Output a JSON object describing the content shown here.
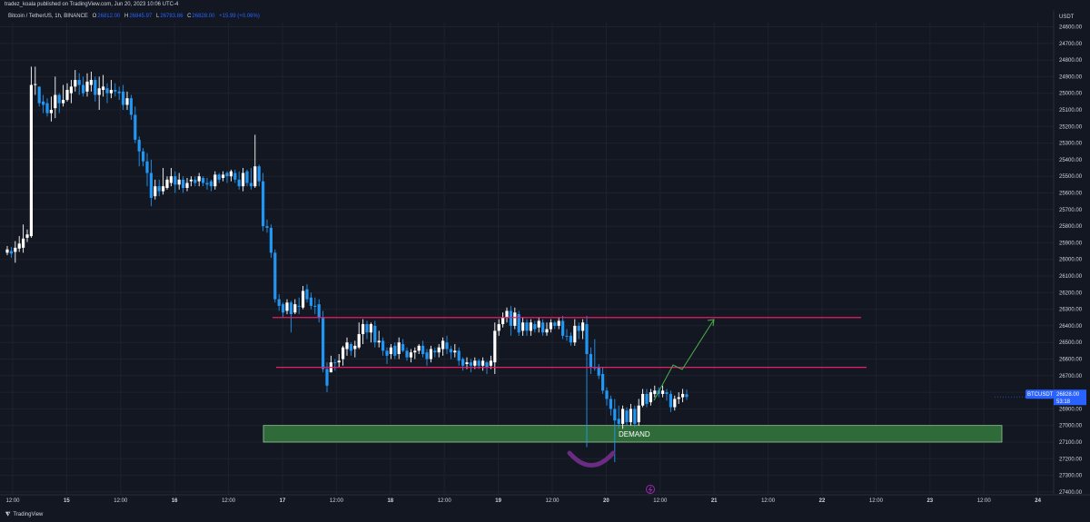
{
  "header": {
    "publisher": "tradez_koala published on TradingView.com, Jun 20, 2023 10:06 UTC-4",
    "symbol": "Bitcoin / TetherUS, 1h, BINANCE",
    "open_key": "O",
    "open": "26812.00",
    "high_key": "H",
    "high": "26845.97",
    "low_key": "L",
    "low": "26783.86",
    "close_key": "C",
    "close": "26828.00",
    "change": "+15.99 (+0.06%)"
  },
  "footer": {
    "logo": "⧨",
    "brand": "TradingView"
  },
  "colors": {
    "background": "#131722",
    "grid": "#1e222d",
    "up_candle": "#ffffff",
    "down_candle": "#2196f3",
    "resistance_line": "#e91e63",
    "demand_zone": "#2e6b38",
    "demand_border": "#a5d6a7",
    "projection": "#4caf50",
    "smile": "#6a2c82",
    "price_label": "#2962ff"
  },
  "chart_data": {
    "type": "candlestick",
    "currency": "USDT",
    "ylim": [
      27400,
      24500
    ],
    "y_ticks": [
      "24600.00",
      "24700.00",
      "24800.00",
      "24900.00",
      "25000.00",
      "25100.00",
      "25200.00",
      "25300.00",
      "25400.00",
      "25500.00",
      "25600.00",
      "25700.00",
      "25800.00",
      "25900.00",
      "26000.00",
      "26100.00",
      "26200.00",
      "26300.00",
      "26400.00",
      "26500.00",
      "26600.00",
      "26700.00",
      "26800.00",
      "26900.00",
      "27000.00",
      "27100.00",
      "27200.00",
      "27300.00",
      "27400.00"
    ],
    "x_ticks": [
      "12:00",
      "15",
      "12:00",
      "16",
      "12:00",
      "17",
      "12:00",
      "18",
      "12:00",
      "19",
      "12:00",
      "20",
      "12:00",
      "21",
      "12:00",
      "22",
      "12:00",
      "23",
      "12:00",
      "24"
    ],
    "last_price": {
      "symbol": "BTCUSDT",
      "price": "26828.00",
      "countdown": "53:18"
    },
    "zones": [
      {
        "label": "DEMAND",
        "from": 27000,
        "to": 27100
      }
    ],
    "levels": [
      26350,
      26650
    ],
    "candles": [
      [
        25960,
        25940,
        25920,
        25975
      ],
      [
        25950,
        25965,
        25925,
        25990
      ],
      [
        25955,
        25930,
        25890,
        26020
      ],
      [
        25935,
        25905,
        25860,
        25955
      ],
      [
        25930,
        25875,
        25790,
        25960
      ],
      [
        25870,
        25850,
        25820,
        25895
      ],
      [
        25860,
        24950,
        24840,
        25870
      ],
      [
        24950,
        24945,
        24840,
        25010
      ],
      [
        24960,
        25060,
        24960,
        25080
      ],
      [
        25050,
        25070,
        25010,
        25120
      ],
      [
        25060,
        25120,
        25030,
        25140
      ],
      [
        25120,
        25100,
        25020,
        25170
      ],
      [
        25090,
        25010,
        24900,
        25150
      ],
      [
        25010,
        25060,
        25000,
        25120
      ],
      [
        25060,
        25040,
        24950,
        25080
      ],
      [
        25040,
        24980,
        24940,
        25050
      ],
      [
        25000,
        24960,
        24920,
        25060
      ],
      [
        24960,
        24920,
        24860,
        24990
      ],
      [
        24920,
        24950,
        24880,
        25010
      ],
      [
        24950,
        25000,
        24900,
        25020
      ],
      [
        24990,
        24930,
        24880,
        25020
      ],
      [
        24950,
        24920,
        24870,
        24990
      ],
      [
        24920,
        25010,
        24900,
        25050
      ],
      [
        25010,
        24970,
        24900,
        25100
      ],
      [
        24980,
        24960,
        24890,
        25020
      ],
      [
        24970,
        25000,
        24940,
        25060
      ],
      [
        25000,
        24980,
        24920,
        25030
      ],
      [
        24980,
        24990,
        24940,
        25020
      ],
      [
        24990,
        25000,
        24960,
        25040
      ],
      [
        24990,
        25070,
        24950,
        25100
      ],
      [
        25070,
        25030,
        24990,
        25100
      ],
      [
        25030,
        25130,
        25010,
        25160
      ],
      [
        25130,
        25280,
        25080,
        25300
      ],
      [
        25280,
        25350,
        25260,
        25440
      ],
      [
        25350,
        25410,
        25330,
        25440
      ],
      [
        25410,
        25480,
        25360,
        25560
      ],
      [
        25480,
        25630,
        25400,
        25680
      ],
      [
        25620,
        25560,
        25520,
        25640
      ],
      [
        25560,
        25590,
        25520,
        25620
      ],
      [
        25590,
        25560,
        25450,
        25610
      ],
      [
        25570,
        25520,
        25500,
        25580
      ],
      [
        25540,
        25500,
        25450,
        25560
      ],
      [
        25500,
        25550,
        25470,
        25600
      ],
      [
        25550,
        25520,
        25480,
        25580
      ],
      [
        25520,
        25570,
        25500,
        25600
      ],
      [
        25570,
        25540,
        25510,
        25590
      ],
      [
        25530,
        25520,
        25500,
        25560
      ],
      [
        25520,
        25540,
        25500,
        25560
      ],
      [
        25530,
        25500,
        25480,
        25560
      ],
      [
        25510,
        25540,
        25500,
        25560
      ],
      [
        25540,
        25550,
        25510,
        25580
      ],
      [
        25530,
        25560,
        25520,
        25590
      ],
      [
        25560,
        25490,
        25470,
        25580
      ],
      [
        25490,
        25520,
        25480,
        25540
      ],
      [
        25510,
        25490,
        25470,
        25530
      ],
      [
        25480,
        25500,
        25470,
        25540
      ],
      [
        25500,
        25470,
        25460,
        25530
      ],
      [
        25480,
        25520,
        25460,
        25540
      ],
      [
        25520,
        25560,
        25470,
        25580
      ],
      [
        25560,
        25480,
        25450,
        25590
      ],
      [
        25470,
        25540,
        25460,
        25560
      ],
      [
        25540,
        25560,
        25450,
        25580
      ],
      [
        25560,
        25440,
        25250,
        25570
      ],
      [
        25440,
        25530,
        25430,
        25560
      ],
      [
        25530,
        25800,
        25480,
        25830
      ],
      [
        25800,
        25810,
        25760,
        25840
      ],
      [
        25810,
        25960,
        25790,
        25990
      ],
      [
        25960,
        26240,
        25940,
        26260
      ],
      [
        26240,
        26280,
        26210,
        26310
      ],
      [
        26270,
        26320,
        26260,
        26350
      ],
      [
        26310,
        26260,
        26240,
        26330
      ],
      [
        26260,
        26330,
        26250,
        26440
      ],
      [
        26320,
        26270,
        26240,
        26330
      ],
      [
        26280,
        26280,
        26230,
        26330
      ],
      [
        26290,
        26190,
        26160,
        26300
      ],
      [
        26180,
        26240,
        26150,
        26260
      ],
      [
        26230,
        26280,
        26200,
        26300
      ],
      [
        26280,
        26280,
        26230,
        26330
      ],
      [
        26270,
        26350,
        26240,
        26380
      ],
      [
        26350,
        26660,
        26310,
        26680
      ],
      [
        26660,
        26760,
        26620,
        26800
      ],
      [
        26680,
        26620,
        26580,
        26680
      ],
      [
        26620,
        26620,
        26600,
        26670
      ],
      [
        26620,
        26610,
        26570,
        26650
      ],
      [
        26600,
        26530,
        26520,
        26640
      ],
      [
        26540,
        26500,
        26470,
        26580
      ],
      [
        26510,
        26550,
        26500,
        26580
      ],
      [
        26540,
        26520,
        26490,
        26590
      ],
      [
        26530,
        26450,
        26380,
        26540
      ],
      [
        26450,
        26390,
        26360,
        26510
      ],
      [
        26390,
        26440,
        26370,
        26480
      ],
      [
        26440,
        26390,
        26380,
        26500
      ],
      [
        26400,
        26500,
        26370,
        26530
      ],
      [
        26500,
        26490,
        26430,
        26530
      ],
      [
        26490,
        26550,
        26470,
        26580
      ],
      [
        26550,
        26580,
        26530,
        26630
      ],
      [
        26570,
        26530,
        26510,
        26600
      ],
      [
        26520,
        26580,
        26500,
        26600
      ],
      [
        26570,
        26500,
        26470,
        26600
      ],
      [
        26510,
        26550,
        26480,
        26560
      ],
      [
        26550,
        26590,
        26530,
        26610
      ],
      [
        26590,
        26560,
        26540,
        26620
      ],
      [
        26560,
        26550,
        26530,
        26600
      ],
      [
        26550,
        26520,
        26510,
        26570
      ],
      [
        26520,
        26570,
        26490,
        26590
      ],
      [
        26560,
        26600,
        26540,
        26640
      ],
      [
        26600,
        26540,
        26520,
        26620
      ],
      [
        26550,
        26560,
        26530,
        26590
      ],
      [
        26560,
        26530,
        26510,
        26590
      ],
      [
        26540,
        26490,
        26470,
        26580
      ],
      [
        26500,
        26540,
        26460,
        26570
      ],
      [
        26540,
        26560,
        26520,
        26600
      ],
      [
        26560,
        26550,
        26510,
        26590
      ],
      [
        26550,
        26610,
        26530,
        26640
      ],
      [
        26600,
        26640,
        26590,
        26670
      ],
      [
        26630,
        26620,
        26590,
        26660
      ],
      [
        26620,
        26640,
        26600,
        26680
      ],
      [
        26640,
        26610,
        26590,
        26660
      ],
      [
        26610,
        26640,
        26600,
        26660
      ],
      [
        26640,
        26610,
        26590,
        26670
      ],
      [
        26620,
        26650,
        26610,
        26690
      ],
      [
        26640,
        26610,
        26580,
        26660
      ],
      [
        26620,
        26430,
        26380,
        26690
      ],
      [
        26430,
        26390,
        26360,
        26460
      ],
      [
        26390,
        26350,
        26320,
        26410
      ],
      [
        26350,
        26310,
        26290,
        26380
      ],
      [
        26310,
        26400,
        26280,
        26460
      ],
      [
        26400,
        26320,
        26290,
        26420
      ],
      [
        26330,
        26440,
        26310,
        26460
      ],
      [
        26430,
        26380,
        26350,
        26460
      ],
      [
        26380,
        26430,
        26360,
        26460
      ],
      [
        26430,
        26380,
        26360,
        26460
      ],
      [
        26390,
        26420,
        26370,
        26440
      ],
      [
        26410,
        26370,
        26350,
        26440
      ],
      [
        26380,
        26440,
        26360,
        26460
      ],
      [
        26440,
        26420,
        26380,
        26460
      ],
      [
        26420,
        26380,
        26360,
        26440
      ],
      [
        26380,
        26400,
        26370,
        26420
      ],
      [
        26400,
        26370,
        26350,
        26420
      ],
      [
        26370,
        26460,
        26340,
        26480
      ],
      [
        26460,
        26460,
        26420,
        26490
      ],
      [
        26460,
        26500,
        26440,
        26520
      ],
      [
        26500,
        26400,
        26360,
        26520
      ],
      [
        26400,
        26430,
        26380,
        26480
      ],
      [
        26430,
        26380,
        26360,
        26480
      ],
      [
        26390,
        26570,
        26340,
        27130
      ],
      [
        26570,
        26650,
        26530,
        26690
      ],
      [
        26650,
        26650,
        26480,
        26670
      ],
      [
        26650,
        26700,
        26630,
        26720
      ],
      [
        26690,
        26790,
        26650,
        26810
      ],
      [
        26790,
        26840,
        26770,
        26880
      ],
      [
        26840,
        26900,
        26820,
        26940
      ],
      [
        26900,
        26970,
        26840,
        27220
      ],
      [
        26960,
        26990,
        26880,
        27020
      ],
      [
        26990,
        26900,
        26880,
        27020
      ],
      [
        26910,
        26980,
        26890,
        27000
      ],
      [
        26980,
        26900,
        26870,
        27000
      ],
      [
        26900,
        26990,
        26880,
        27010
      ],
      [
        26980,
        26880,
        26840,
        27000
      ],
      [
        26880,
        26810,
        26780,
        26890
      ],
      [
        26810,
        26870,
        26780,
        26890
      ],
      [
        26860,
        26800,
        26780,
        26880
      ],
      [
        26810,
        26790,
        26760,
        26830
      ],
      [
        26790,
        26810,
        26770,
        26830
      ],
      [
        26810,
        26790,
        26760,
        26830
      ],
      [
        26800,
        26810,
        26780,
        26850
      ],
      [
        26810,
        26890,
        26790,
        26920
      ],
      [
        26890,
        26840,
        26820,
        26910
      ],
      [
        26840,
        26830,
        26800,
        26870
      ],
      [
        26830,
        26810,
        26780,
        26860
      ],
      [
        26812,
        26828,
        26784,
        26846
      ]
    ]
  }
}
